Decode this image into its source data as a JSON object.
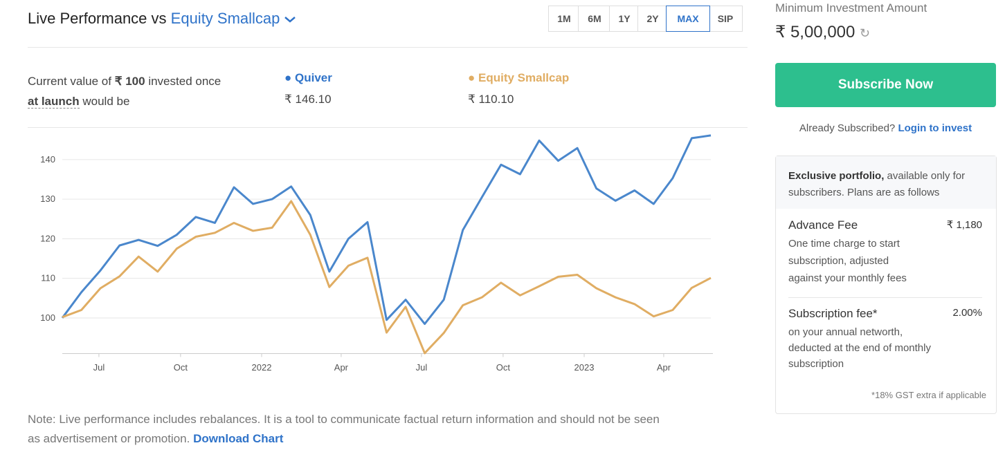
{
  "header": {
    "title": "Live Performance vs",
    "benchmark": "Equity Smallcap",
    "ranges": [
      "1M",
      "6M",
      "1Y",
      "2Y",
      "MAX",
      "SIP"
    ],
    "selected_range": "MAX"
  },
  "summary": {
    "line1": "Current value of",
    "amount": "₹ 100",
    "line1_end": "invested once",
    "launch": "at launch",
    "line2_end": "would be",
    "quiver_value": "₹ 146.10",
    "benchmark_value": "₹ 110.10"
  },
  "chart_data": {
    "type": "line",
    "x": [
      0,
      1,
      2,
      3,
      4,
      5,
      6,
      7,
      8,
      9,
      10,
      11,
      12,
      13,
      14,
      15,
      16,
      17,
      18,
      19,
      20,
      21,
      22,
      23,
      24,
      25,
      26,
      27,
      28,
      29,
      30,
      31,
      32,
      33,
      34
    ],
    "series": [
      {
        "name": "Quiver",
        "color": "#4a87cc",
        "values": [
          100,
          106.5,
          112,
          118.3,
          119.7,
          118.2,
          121,
          125.5,
          124,
          133,
          128.8,
          130,
          133.2,
          126,
          111.7,
          120,
          124.2,
          99.5,
          104.6,
          98.5,
          104.6,
          122.2,
          130.5,
          138.7,
          136.3,
          144.8,
          139.7,
          142.9,
          132.7,
          129.6,
          132.2,
          128.8,
          135.3,
          145.4,
          146.1
        ]
      },
      {
        "name": "Equity Smallcap",
        "color": "#e0ad63",
        "values": [
          100.2,
          102,
          107.5,
          110.5,
          115.5,
          111.7,
          117.5,
          120.5,
          121.5,
          124,
          122,
          122.8,
          129.5,
          121,
          107.8,
          113.2,
          115.2,
          96.3,
          102.8,
          91.1,
          96.2,
          103.2,
          105.2,
          108.9,
          105.7,
          108,
          110.4,
          110.9,
          107.5,
          105.2,
          103.5,
          100.4,
          102,
          107.6,
          110.1
        ]
      }
    ],
    "xlim": [
      0,
      34
    ],
    "xticks": [
      {
        "value": 1.92,
        "label": "Jul"
      },
      {
        "value": 6.2,
        "label": "Oct"
      },
      {
        "value": 10.45,
        "label": "2022"
      },
      {
        "value": 14.62,
        "label": "Apr"
      },
      {
        "value": 18.83,
        "label": "Jul"
      },
      {
        "value": 23.11,
        "label": "Oct"
      },
      {
        "value": 27.36,
        "label": "2023"
      },
      {
        "value": 31.53,
        "label": "Apr"
      }
    ],
    "ylim": [
      91,
      148
    ],
    "yticks": [
      100,
      110,
      120,
      130,
      140
    ],
    "grid": true
  },
  "note": {
    "text": "Note: Live performance includes rebalances. It is a tool to communicate factual return information and should not be seen",
    "text2": "as advertisement or promotion.",
    "link": "Download Chart"
  },
  "sidebar": {
    "min_label": "Minimum Investment Amount",
    "min_value": "₹ 5,00,000",
    "subscribe": "Subscribe Now",
    "already": "Already Subscribed?",
    "login": "Login to invest",
    "exclusive_bold": "Exclusive portfolio,",
    "exclusive_rest": "available only for",
    "exclusive_line2": "subscribers. Plans are as follows",
    "fees": [
      {
        "name": "Advance Fee",
        "amount": "₹ 1,180",
        "desc": [
          "One time charge to start",
          "subscription, adjusted",
          "against your monthly fees"
        ]
      },
      {
        "name": "Subscription fee*",
        "amount": "2.00%",
        "desc": [
          "on your annual networth,",
          "deducted at the end of monthly",
          "subscription"
        ]
      }
    ],
    "gst": "*18% GST extra if applicable"
  }
}
